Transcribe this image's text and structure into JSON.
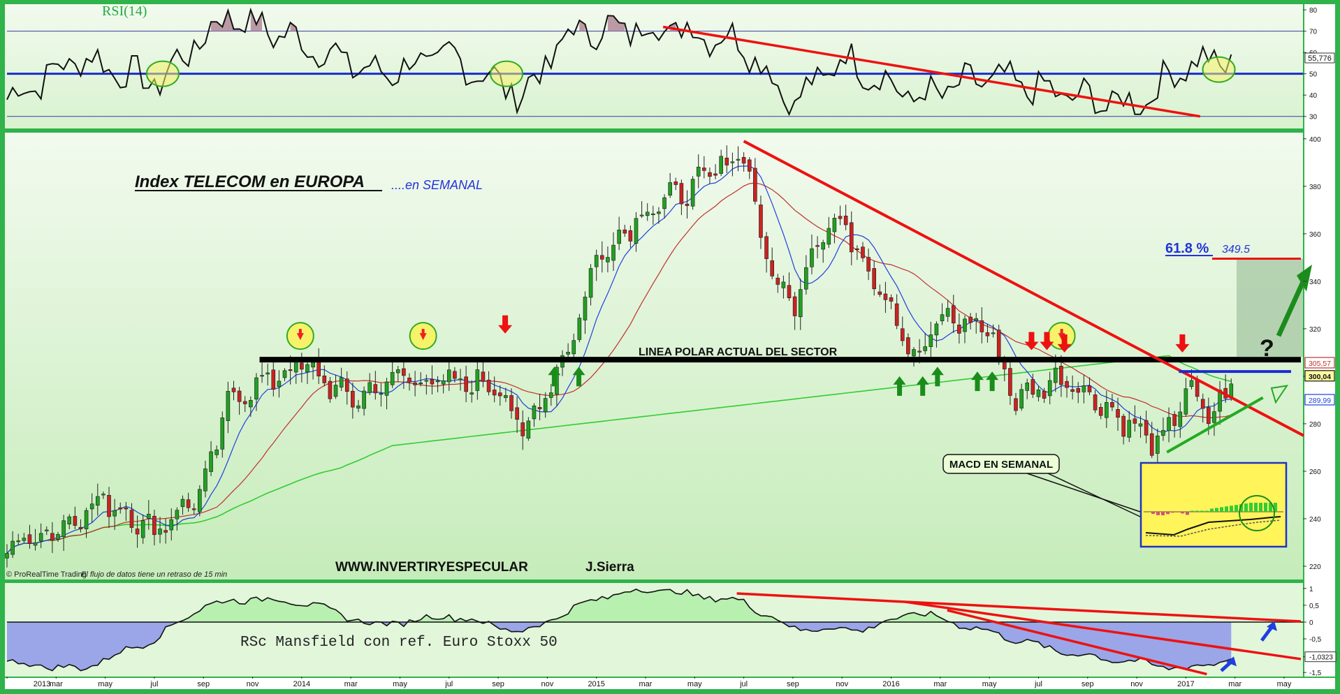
{
  "colors": {
    "frame": "#2fb34a",
    "panel_bg": "#e6f5df",
    "panel_bg_bottom": "#c2ecb5",
    "trend_red": "#ee1111",
    "bull": "#22a022",
    "bear": "#cc2222",
    "ma_short": "#1f3fe0",
    "ma_mid": "#c23030",
    "ma_long": "#33cc33",
    "polar": "#000000",
    "rsc_pos": "#b8f0b0",
    "rsc_neg": "#9aa6e8",
    "macd_box": "#fff45a"
  },
  "rsi": {
    "label": "RSI(14)",
    "ticks": [
      "80",
      "70",
      "60",
      "50",
      "40",
      "30"
    ],
    "current_value_label": "55,776"
  },
  "price": {
    "title": "Index TELECOM en EUROPA",
    "subtitle": "....en SEMANAL",
    "ticks": [
      "400",
      "380",
      "360",
      "340",
      "320",
      "300",
      "280",
      "260",
      "240",
      "220"
    ],
    "polar_line_label": "LINEA POLAR ACTUAL DEL SECTOR",
    "fib_label": "61.8 %",
    "fib_value": "349.5",
    "question_mark": "?",
    "macd_label": "MACD EN SEMANAL",
    "price_badges": [
      "305,57",
      "300,04",
      "289,99"
    ],
    "website": "WWW.INVERTIRYESPECULAR",
    "author": "J.Sierra",
    "source_note": "© ProRealTime Trading",
    "delay_note": "El flujo de datos tiene un retraso de 15 min"
  },
  "rsc": {
    "label": "RSc Mansfield con ref. Euro Stoxx 50",
    "ticks": [
      "1",
      "0,5",
      "0",
      "-0,5",
      "-1,0323",
      "-1,5"
    ]
  },
  "xaxis": {
    "labels": [
      "2013",
      "mar",
      "may",
      "jul",
      "sep",
      "nov",
      "2014",
      "mar",
      "may",
      "jul",
      "sep",
      "nov",
      "2015",
      "mar",
      "may",
      "jul",
      "sep",
      "nov",
      "2016",
      "mar",
      "may",
      "jul",
      "sep",
      "nov",
      "2017",
      "mar",
      "may"
    ]
  },
  "chart_data": {
    "type": "candlestick",
    "instrument": "Index TELECOM en EUROPA",
    "timeframe": "SEMANAL",
    "x_range": [
      "2013-01",
      "2017-05"
    ],
    "price_ylim": [
      215,
      402
    ],
    "rsi_ylim": [
      25,
      82
    ],
    "rsc_ylim": [
      -1.6,
      1.1
    ],
    "price_anchors": [
      {
        "t": "2013-01",
        "p": 228
      },
      {
        "t": "2013-03",
        "p": 236
      },
      {
        "t": "2013-05",
        "p": 248
      },
      {
        "t": "2013-07",
        "p": 235
      },
      {
        "t": "2013-09",
        "p": 252
      },
      {
        "t": "2013-10",
        "p": 290
      },
      {
        "t": "2013-12",
        "p": 300
      },
      {
        "t": "2014-01",
        "p": 305
      },
      {
        "t": "2014-03",
        "p": 290
      },
      {
        "t": "2014-05",
        "p": 300
      },
      {
        "t": "2014-07",
        "p": 297
      },
      {
        "t": "2014-09",
        "p": 297
      },
      {
        "t": "2014-10",
        "p": 275
      },
      {
        "t": "2014-12",
        "p": 315
      },
      {
        "t": "2015-01",
        "p": 350
      },
      {
        "t": "2015-03",
        "p": 370
      },
      {
        "t": "2015-05",
        "p": 380
      },
      {
        "t": "2015-07",
        "p": 395
      },
      {
        "t": "2015-08",
        "p": 345
      },
      {
        "t": "2015-09",
        "p": 330
      },
      {
        "t": "2015-10",
        "p": 360
      },
      {
        "t": "2015-11",
        "p": 365
      },
      {
        "t": "2016-01",
        "p": 330
      },
      {
        "t": "2016-02",
        "p": 305
      },
      {
        "t": "2016-03",
        "p": 325
      },
      {
        "t": "2016-05",
        "p": 320
      },
      {
        "t": "2016-06",
        "p": 290
      },
      {
        "t": "2016-08",
        "p": 300
      },
      {
        "t": "2016-10",
        "p": 285
      },
      {
        "t": "2016-12",
        "p": 270
      },
      {
        "t": "2017-01",
        "p": 295
      },
      {
        "t": "2017-02",
        "p": 282
      },
      {
        "t": "2017-03",
        "p": 300
      }
    ],
    "rsi_anchors": [
      {
        "t": "2013-01",
        "v": 38
      },
      {
        "t": "2013-04",
        "v": 58
      },
      {
        "t": "2013-07",
        "v": 45
      },
      {
        "t": "2013-10",
        "v": 78
      },
      {
        "t": "2014-01",
        "v": 65
      },
      {
        "t": "2014-04",
        "v": 50
      },
      {
        "t": "2014-07",
        "v": 58
      },
      {
        "t": "2014-10",
        "v": 40
      },
      {
        "t": "2014-12",
        "v": 70
      },
      {
        "t": "2015-04",
        "v": 72
      },
      {
        "t": "2015-07",
        "v": 65
      },
      {
        "t": "2015-09",
        "v": 35
      },
      {
        "t": "2015-11",
        "v": 58
      },
      {
        "t": "2016-02",
        "v": 38
      },
      {
        "t": "2016-05",
        "v": 48
      },
      {
        "t": "2016-08",
        "v": 40
      },
      {
        "t": "2016-11",
        "v": 35
      },
      {
        "t": "2017-01",
        "v": 55
      },
      {
        "t": "2017-03",
        "v": 56
      }
    ],
    "rsc_anchors": [
      {
        "t": "2013-01",
        "v": -1.2
      },
      {
        "t": "2013-04",
        "v": -1.4
      },
      {
        "t": "2013-07",
        "v": -0.5
      },
      {
        "t": "2013-09",
        "v": 0.5
      },
      {
        "t": "2013-11",
        "v": 0.7
      },
      {
        "t": "2014-01",
        "v": 0.6
      },
      {
        "t": "2014-04",
        "v": -0.1
      },
      {
        "t": "2014-07",
        "v": 0.2
      },
      {
        "t": "2014-10",
        "v": -0.3
      },
      {
        "t": "2015-01",
        "v": 0.7
      },
      {
        "t": "2015-03",
        "v": 1.0
      },
      {
        "t": "2015-07",
        "v": 0.6
      },
      {
        "t": "2015-09",
        "v": -0.2
      },
      {
        "t": "2015-12",
        "v": -0.2
      },
      {
        "t": "2016-02",
        "v": 0.3
      },
      {
        "t": "2016-05",
        "v": -0.3
      },
      {
        "t": "2016-08",
        "v": -0.9
      },
      {
        "t": "2016-11",
        "v": -1.2
      },
      {
        "t": "2017-01",
        "v": -1.4
      },
      {
        "t": "2017-03",
        "v": -1.03
      }
    ],
    "levels": {
      "polar_line": 307,
      "fib_618": 349.5,
      "rsi_midline": 50,
      "rsi_upper": 70,
      "rsi_lower": 30,
      "rsc_zero": 0
    },
    "last": {
      "price": 300.04,
      "ma_mid": 305.57,
      "ma_short": 289.99,
      "rsi": 55.776,
      "rsc": -1.0323
    }
  }
}
